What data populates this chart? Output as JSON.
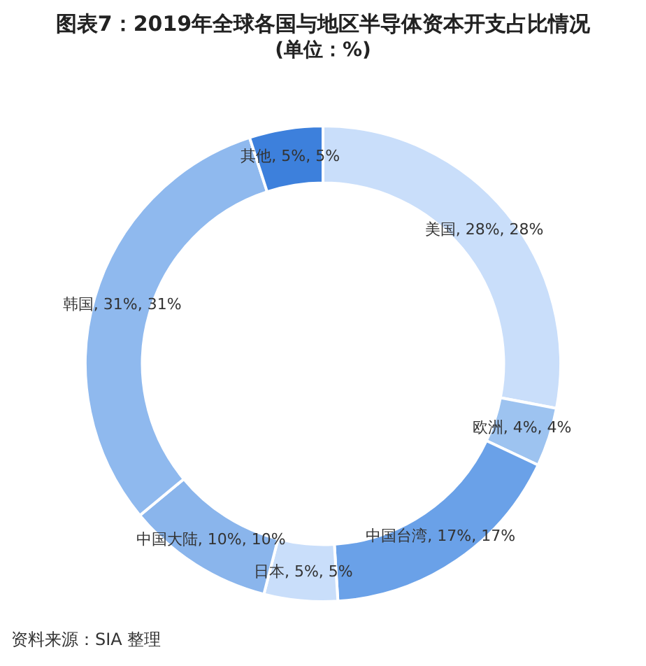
{
  "chart_data": {
    "type": "donut",
    "title": "图表7：2019年全球各国与地区半导体资本开支占比情况",
    "subtitle": "(单位：%)",
    "categories": [
      "美国",
      "欧洲",
      "中国台湾",
      "日本",
      "中国大陆",
      "韩国",
      "其他"
    ],
    "values": [
      28,
      4,
      17,
      5,
      10,
      31,
      5
    ],
    "colors": [
      "#c9defa",
      "#9dc3f0",
      "#6aa1e8",
      "#c9defa",
      "#8ab5ec",
      "#8fb9ee",
      "#3d80dc"
    ],
    "value_labels": [
      ", 28%, 28%",
      ", 4%, 4%",
      ", 17%, 17%",
      ", 5%, 5%",
      ", 10%, 10%",
      ", 31%, 31%",
      ", 5%, 5%"
    ],
    "annotations": [
      "资料来源：SIA 整理"
    ]
  }
}
